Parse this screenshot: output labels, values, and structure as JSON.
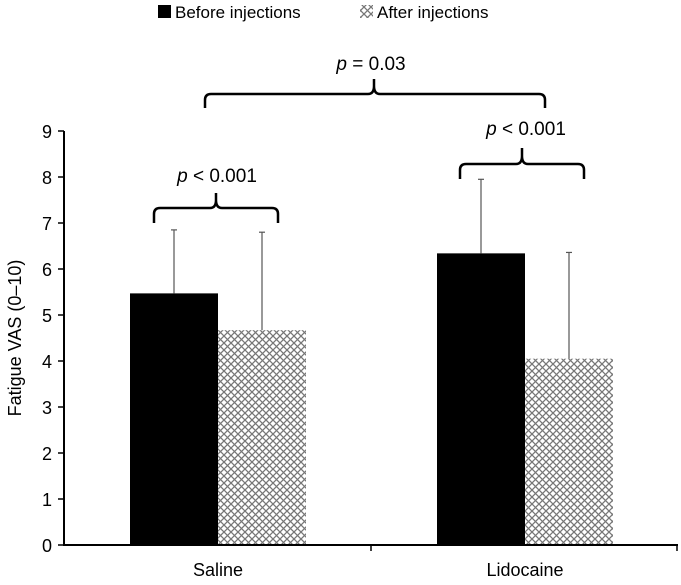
{
  "chart_data": {
    "type": "bar",
    "title": "",
    "xlabel": "",
    "ylabel": "Fatigue VAS (0–10)",
    "ylim": [
      0,
      9
    ],
    "yticks": [
      "0",
      "1",
      "2",
      "3",
      "4",
      "5",
      "6",
      "7",
      "8",
      "9"
    ],
    "categories": [
      "Saline",
      "Lidocaine"
    ],
    "legend_position": "top",
    "grid": false,
    "series": [
      {
        "name": "Before injections",
        "values": [
          5.47,
          6.34
        ],
        "error_upper": [
          6.85,
          7.95
        ],
        "fill": "solid",
        "color": "#000000"
      },
      {
        "name": "After injections",
        "values": [
          4.67,
          4.05
        ],
        "error_upper": [
          6.8,
          6.36
        ],
        "fill": "crosshatch",
        "color": "#777777"
      }
    ],
    "annotations": [
      {
        "label_p": "p",
        "label_rest": " < 0.001",
        "comparison": "Saline before vs after"
      },
      {
        "label_p": "p",
        "label_rest": " < 0.001",
        "comparison": "Lidocaine before vs after"
      },
      {
        "label_p": "p",
        "label_rest": " = 0.03",
        "comparison": "Saline vs Lidocaine"
      }
    ]
  }
}
